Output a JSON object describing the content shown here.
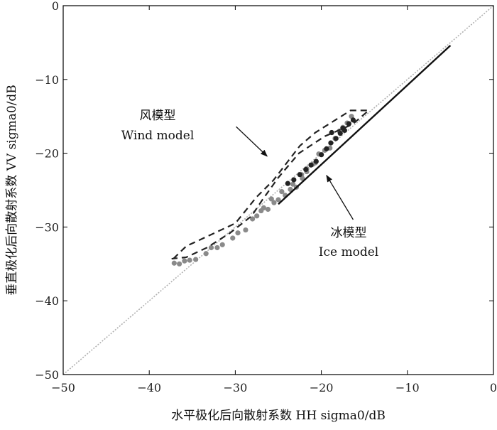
{
  "chart_data": {
    "type": "scatter",
    "xlabel": "水平极化后向散射系数 HH sigma0/dB",
    "ylabel": "垂直极化后向散射系数 VV sigma0/dB",
    "xlim": [
      -50,
      0
    ],
    "ylim": [
      -50,
      0
    ],
    "xticks": [
      -50,
      -40,
      -30,
      -20,
      -10,
      0
    ],
    "yticks": [
      -50,
      -40,
      -30,
      -20,
      -10,
      0
    ],
    "xtick_labels": [
      "−50",
      "−40",
      "−30",
      "−20",
      "−10",
      "0"
    ],
    "ytick_labels": [
      "−50",
      "−40",
      "−30",
      "−20",
      "−10",
      "0"
    ],
    "grid": false,
    "diagonal": {
      "style": "dotted",
      "color": "#b0b0b0",
      "x": [
        -50,
        0
      ],
      "y": [
        -50,
        0
      ]
    },
    "series": [
      {
        "kind": "points",
        "color": "#8a8a8a",
        "x": [
          -37.1,
          -36.5,
          -35.9,
          -35.3,
          -34.6,
          -33.4,
          -32.8,
          -32.1,
          -31.5,
          -30.3,
          -29.7,
          -28.8,
          -28.0,
          -27.5,
          -27.0,
          -26.2,
          -25.5,
          -25.0,
          -24.2,
          -23.6,
          -22.9,
          -22.2,
          -21.7,
          -21.0,
          -20.3,
          -19.6,
          -19.0,
          -18.4,
          -17.9,
          -17.5,
          -17.0,
          -16.5,
          -20.7,
          -21.7,
          -22.3,
          -23.3,
          -24.6,
          -25.8,
          -26.7
        ],
        "y": [
          -34.9,
          -35.0,
          -34.6,
          -34.5,
          -34.4,
          -33.6,
          -32.8,
          -32.8,
          -32.4,
          -31.5,
          -30.8,
          -30.4,
          -28.9,
          -28.5,
          -27.8,
          -27.6,
          -26.7,
          -26.3,
          -25.7,
          -24.9,
          -24.6,
          -23.4,
          -22.1,
          -21.5,
          -20.1,
          -19.6,
          -19.3,
          -18.0,
          -17.0,
          -16.5,
          -15.9,
          -15.0,
          -21.3,
          -22.5,
          -22.9,
          -24.2,
          -25.2,
          -26.2,
          -27.4
        ]
      },
      {
        "kind": "points",
        "color": "#222222",
        "x": [
          -23.9,
          -23.2,
          -22.5,
          -21.8,
          -21.2,
          -20.6,
          -20.0,
          -19.4,
          -18.9,
          -18.3,
          -17.8,
          -17.3,
          -16.8,
          -16.3,
          -18.8,
          -17.5
        ],
        "y": [
          -24.1,
          -23.6,
          -22.9,
          -22.2,
          -21.6,
          -21.1,
          -20.2,
          -19.4,
          -18.6,
          -18.0,
          -17.3,
          -16.9,
          -16.0,
          -15.5,
          -17.2,
          -16.6
        ]
      },
      {
        "kind": "dashed-boundary",
        "color": "#222222",
        "x": [
          -37.2,
          -35.7,
          -30.0,
          -27.5,
          -25.6,
          -22.5,
          -20.7,
          -16.6,
          -14.5,
          -16.4,
          -19.6,
          -22.6,
          -25.0,
          -26.9,
          -28.1,
          -30.6,
          -33.3,
          -35.7,
          -37.4
        ],
        "y": [
          -34.3,
          -32.6,
          -29.5,
          -25.9,
          -23.7,
          -19.0,
          -17.2,
          -14.2,
          -14.2,
          -16.1,
          -17.7,
          -20.0,
          -23.3,
          -26.4,
          -28.5,
          -30.8,
          -32.8,
          -34.1,
          -34.3
        ]
      },
      {
        "kind": "solid-line",
        "color": "#111111",
        "x": [
          -25.0,
          -5.0
        ],
        "y": [
          -26.9,
          -5.4
        ]
      }
    ],
    "annotations": [
      {
        "id": "wind",
        "lines": [
          "风模型",
          "Wind model"
        ],
        "arrow_from": [
          -29.9,
          -16.4
        ],
        "arrow_to": [
          -26.3,
          -20.4
        ]
      },
      {
        "id": "ice",
        "lines": [
          "冰模型",
          "Ice model"
        ],
        "arrow_from": [
          -16.3,
          -29.0
        ],
        "arrow_to": [
          -19.4,
          -23.0
        ]
      }
    ]
  }
}
